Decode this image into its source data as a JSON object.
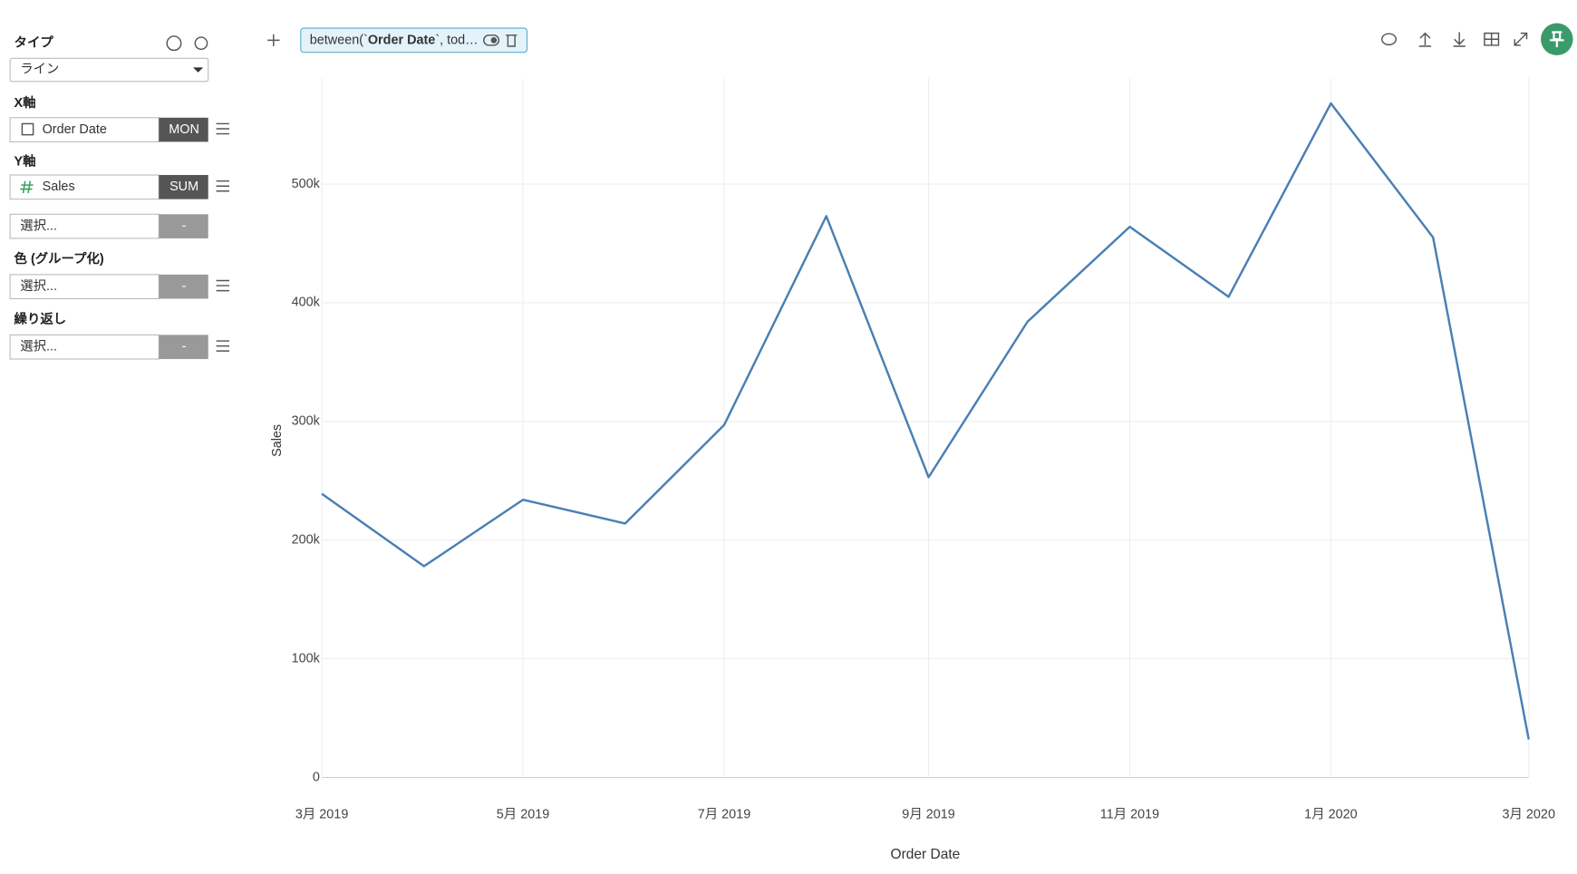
{
  "sidebar": {
    "type_label": "タイプ",
    "type_value": "ライン",
    "x_label": "X軸",
    "x_field": "Order Date",
    "x_agg": "MON",
    "y_label": "Y軸",
    "y_field": "Sales",
    "y_agg": "SUM",
    "y2_placeholder": "選択...",
    "y2_agg": "-",
    "color_label": "色 (グループ化)",
    "color_placeholder": "選択...",
    "color_agg": "-",
    "repeat_label": "繰り返し",
    "repeat_placeholder": "選択...",
    "repeat_agg": "-"
  },
  "filter": {
    "prefix": "between(`",
    "field": "Order Date",
    "suffix": "`, tod…"
  },
  "chart_data": {
    "type": "line",
    "x_label": "Order Date",
    "y_label": "Sales",
    "color": "#4a7fb5",
    "grid": true,
    "x": [
      "2019-03",
      "2019-04",
      "2019-05",
      "2019-06",
      "2019-07",
      "2019-08",
      "2019-09",
      "2019-10",
      "2019-11",
      "2019-12",
      "2020-01",
      "2020-02",
      "2020-03"
    ],
    "values": [
      239000,
      178000,
      234000,
      214000,
      297000,
      473000,
      253000,
      384000,
      464000,
      405000,
      568000,
      455000,
      32000
    ],
    "xlim": [
      "2019-03",
      "2020-03"
    ],
    "xticks": [
      {
        "value": "2019-03",
        "label": "3月 2019"
      },
      {
        "value": "2019-05",
        "label": "5月 2019"
      },
      {
        "value": "2019-07",
        "label": "7月 2019"
      },
      {
        "value": "2019-09",
        "label": "9月 2019"
      },
      {
        "value": "2019-11",
        "label": "11月 2019"
      },
      {
        "value": "2020-01",
        "label": "1月 2020"
      },
      {
        "value": "2020-03",
        "label": "3月 2020"
      }
    ],
    "ylim": [
      0,
      589000
    ],
    "yticks": [
      0,
      {
        "value": 100000,
        "label": "100k"
      },
      {
        "value": 200000,
        "label": "200k"
      },
      {
        "value": 300000,
        "label": "300k"
      },
      {
        "value": 400000,
        "label": "400k"
      },
      {
        "value": 500000,
        "label": "500k"
      }
    ]
  }
}
